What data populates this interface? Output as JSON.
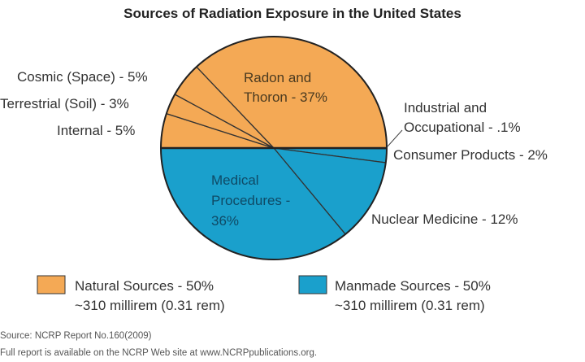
{
  "chart_data": {
    "type": "pie",
    "title": "Sources of Radiation Exposure in the United States",
    "slices": [
      {
        "label": "Internal - 5%",
        "value": 5,
        "group": "natural"
      },
      {
        "label": "Terrestrial (Soil) - 3%",
        "value": 3,
        "group": "natural"
      },
      {
        "label": "Cosmic (Space) - 5%",
        "value": 5,
        "group": "natural"
      },
      {
        "label": "Radon and Thoron - 37%",
        "value": 37,
        "group": "natural"
      },
      {
        "label": "Industrial and Occupational - .1%",
        "value": 0.1,
        "group": "manmade"
      },
      {
        "label": "Consumer Products - 2%",
        "value": 2,
        "group": "manmade"
      },
      {
        "label": "Nuclear Medicine - 12%",
        "value": 12,
        "group": "manmade"
      },
      {
        "label": "Medical Procedures - 36%",
        "value": 36,
        "group": "manmade"
      }
    ],
    "legend": [
      {
        "line1": "Natural Sources - 50%",
        "line2": "~310 millirem (0.31 rem)",
        "color": "#f4a955"
      },
      {
        "line1": "Manmade Sources - 50%",
        "line2": "~310 millirem (0.31 rem)",
        "color": "#1aa0cc"
      }
    ],
    "colors": {
      "natural": "#f4a955",
      "manmade": "#1aa0cc"
    }
  },
  "labels": {
    "radon1": "Radon and",
    "radon2": "Thoron - 37%",
    "cosmic": "Cosmic (Space) - 5%",
    "terrestrial": "Terrestrial (Soil) - 3%",
    "internal": "Internal - 5%",
    "industrial1": "Industrial and",
    "industrial2": "Occupational - .1%",
    "consumer": "Consumer Products - 2%",
    "medical1": "Medical",
    "medical2": "Procedures -",
    "medical3": "36%",
    "nuclear": "Nuclear Medicine - 12%"
  },
  "source": {
    "line1": "Source: NCRP Report No.160(2009)",
    "line2": "Full report is available on the NCRP Web site at www.NCRPpublications.org."
  }
}
